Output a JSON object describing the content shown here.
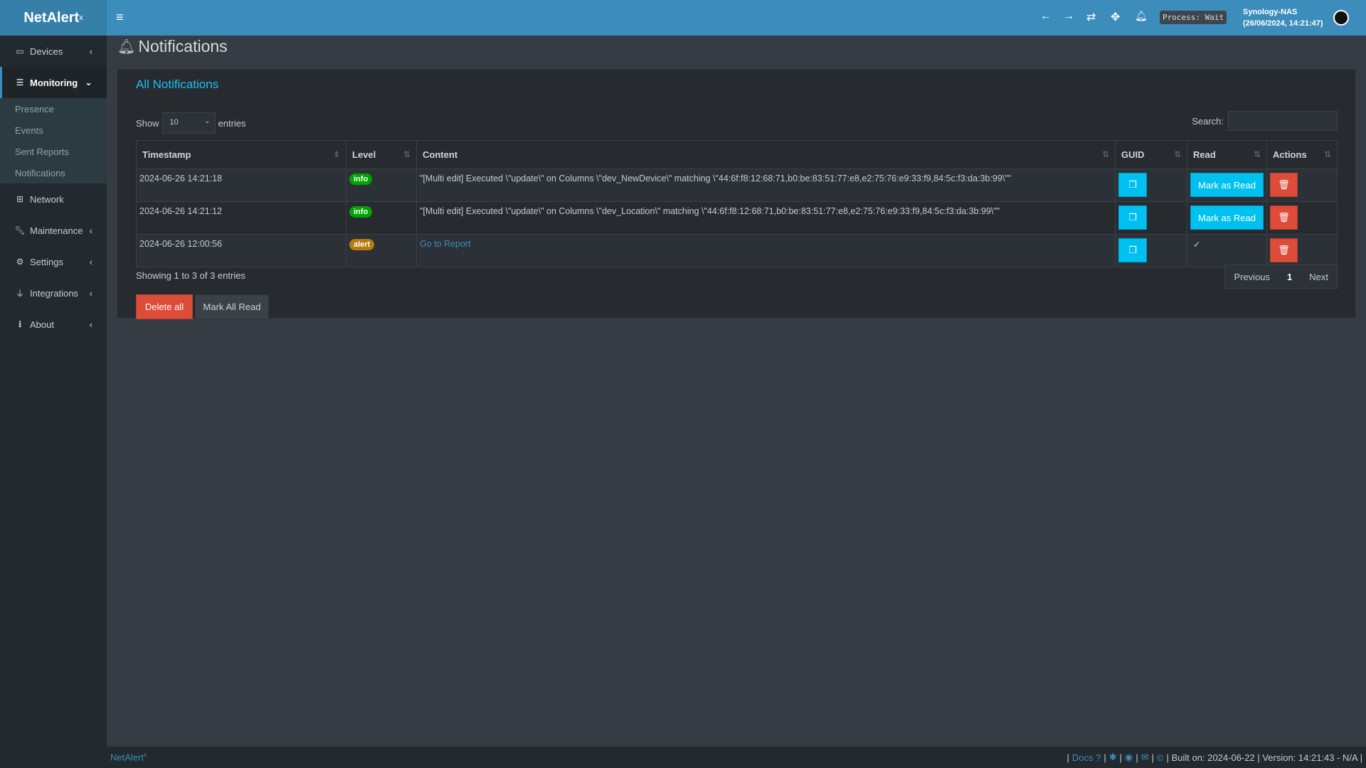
{
  "app": {
    "logo": "NetAlert",
    "logo_sup": "x"
  },
  "header": {
    "process": "Process: Wait",
    "host": "Synology-NAS",
    "datetime": "(26/06/2024, 14:21:47)"
  },
  "sidebar": {
    "items": [
      {
        "label": "Devices",
        "icon": "laptop-icon"
      },
      {
        "label": "Monitoring",
        "icon": "chart-icon"
      },
      {
        "label": "Network",
        "icon": "sitemap-icon"
      },
      {
        "label": "Maintenance",
        "icon": "wrench-icon"
      },
      {
        "label": "Settings",
        "icon": "gear-icon"
      },
      {
        "label": "Integrations",
        "icon": "plug-icon"
      },
      {
        "label": "About",
        "icon": "info-icon"
      }
    ],
    "submenu": [
      "Presence",
      "Events",
      "Sent Reports",
      "Notifications"
    ]
  },
  "page": {
    "title": "Notifications",
    "box_title": "All Notifications"
  },
  "table_controls": {
    "show": "Show",
    "page_size": "10",
    "entries": "entries",
    "search_label": "Search:",
    "search_value": ""
  },
  "table": {
    "columns": [
      "Timestamp",
      "Level",
      "Content",
      "GUID",
      "Read",
      "Actions"
    ],
    "rows": [
      {
        "timestamp": "2024-06-26 14:21:18",
        "level": "info",
        "content": "\"[Multi edit] Executed \\\"update\\\" on Columns \\\"dev_NewDevice\\\" matching \\\"44:6f:f8:12:68:71,b0:be:83:51:77:e8,e2:75:76:e9:33:f9,84:5c:f3:da:3b:99\\\"\"",
        "read": "Mark as Read"
      },
      {
        "timestamp": "2024-06-26 14:21:12",
        "level": "info",
        "content": "\"[Multi edit] Executed \\\"update\\\" on Columns \\\"dev_Location\\\" matching \\\"44:6f:f8:12:68:71,b0:be:83:51:77:e8,e2:75:76:e9:33:f9,84:5c:f3:da:3b:99\\\"\"",
        "read": "Mark as Read"
      },
      {
        "timestamp": "2024-06-26 12:00:56",
        "level": "alert",
        "content": "Go to Report",
        "read": "✓"
      }
    ]
  },
  "colors": {
    "info": "#00a400",
    "alert": "#b8790f",
    "accent": "#00c0ef",
    "danger": "#dd4b39"
  },
  "pagination": {
    "info": "Showing 1 to 3 of 3 entries",
    "previous": "Previous",
    "page": "1",
    "next": "Next"
  },
  "actions": {
    "delete_all": "Delete all",
    "mark_all_read": "Mark All Read"
  },
  "footer": {
    "brand": "NetAlert",
    "brand_sup": "x",
    "docs": "Docs",
    "built": "| Built on: 2024-06-22 | Version: 14:21:43 - N/A |"
  }
}
